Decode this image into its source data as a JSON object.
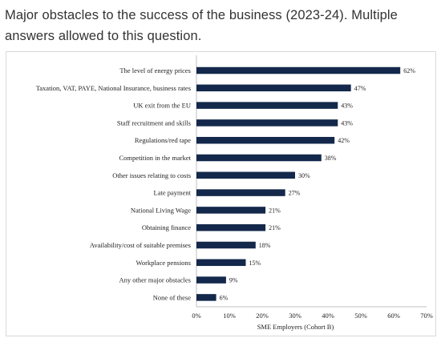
{
  "page": {
    "heading": "Major obstacles to the success of the business (2023-24). Multiple answers allowed to this question."
  },
  "chart_data": {
    "type": "bar",
    "orientation": "horizontal",
    "bar_color": "#13284b",
    "xlabel": "SME Employers (Cohort B)",
    "ylabel": "",
    "xlim": [
      0,
      70
    ],
    "x_ticks": [
      "0%",
      "10%",
      "20%",
      "30%",
      "40%",
      "50%",
      "60%",
      "70%"
    ],
    "grid": false,
    "categories": [
      "The level of energy prices",
      "Taxation, VAT, PAYE, National Insurance, business rates",
      "UK exit from the EU",
      "Staff recruitment and skills",
      "Regulations/red tape",
      "Competition in the market",
      "Other issues relating to costs",
      "Late payment",
      "National Living Wage",
      "Obtaining finance",
      "Availability/cost of suitable premises",
      "Workplace pensions",
      "Any other major obstacles",
      "None of these"
    ],
    "values": [
      62,
      47,
      43,
      43,
      42,
      38,
      30,
      27,
      21,
      21,
      18,
      15,
      9,
      6
    ],
    "value_labels": [
      "62%",
      "47%",
      "43%",
      "43%",
      "42%",
      "38%",
      "30%",
      "27%",
      "21%",
      "21%",
      "18%",
      "15%",
      "9%",
      "6%"
    ]
  }
}
